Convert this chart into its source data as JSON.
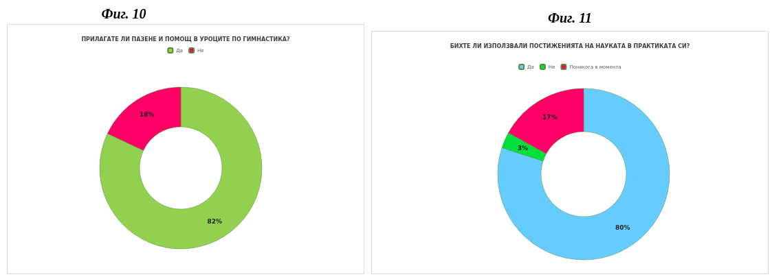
{
  "chart_data": [
    {
      "type": "donut",
      "title": "ПРИЛАГАТЕ ЛИ ПАЗЕНЕ И ПОМОЩ В УРОЦИТЕ ПО ГИМНАСТИКА?",
      "annotations": [
        "Фиг. 10"
      ],
      "categories": [
        "Да",
        "Не"
      ],
      "values": [
        82,
        18
      ],
      "colors": [
        "#92d050",
        "#ff0066"
      ],
      "value_labels": [
        "82%",
        "18%"
      ],
      "legend": "top"
    },
    {
      "type": "donut",
      "title": "БИХТЕ ЛИ ИЗПОЛЗВАЛИ ПОСТИЖЕНИЯТА НА НАУКАТА В ПРАКТИКАТА СИ?",
      "annotations": [
        "Фиг. 11"
      ],
      "categories": [
        "Да",
        "Не",
        "Понякога в момента"
      ],
      "values": [
        80,
        3,
        17
      ],
      "colors": [
        "#66ccff",
        "#00e03c",
        "#ff0066"
      ],
      "value_labels": [
        "80%",
        "3%",
        "17%"
      ],
      "legend": "top"
    }
  ]
}
